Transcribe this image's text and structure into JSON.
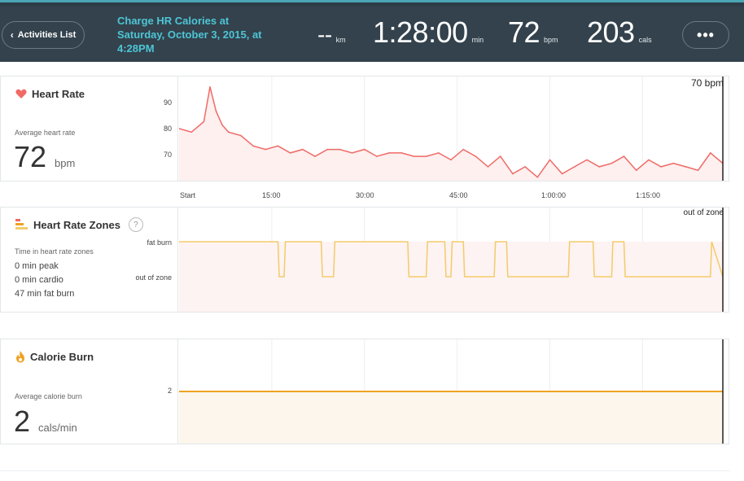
{
  "header": {
    "back_label": "Activities List",
    "title": "Charge HR Calories at Saturday, October 3, 2015, at 4:28PM",
    "distance": {
      "value": "--",
      "unit": "km"
    },
    "duration": {
      "value": "1:28:00",
      "unit": "min"
    },
    "heart_rate": {
      "value": "72",
      "unit": "bpm"
    },
    "calories": {
      "value": "203",
      "unit": "cals"
    },
    "more_label": "•••"
  },
  "heart_rate_panel": {
    "title": "Heart Rate",
    "avg_label": "Average heart rate",
    "avg_value": "72",
    "avg_unit": "bpm",
    "y_ticks": [
      "90",
      "80",
      "70"
    ],
    "cursor_label": "70 bpm",
    "line_color": "#f06a66",
    "fill_color": "#fdf0ef"
  },
  "x_axis": {
    "ticks": [
      "Start",
      "15:00",
      "30:00",
      "45:00",
      "1:00:00",
      "1:15:00"
    ]
  },
  "zones_panel": {
    "title": "Heart Rate Zones",
    "help": "?",
    "time_label": "Time in heart rate zones",
    "peak": "0 min peak",
    "cardio": "0 min cardio",
    "fat_burn": "47 min fat burn",
    "y_labels": [
      "fat burn",
      "out of zone"
    ],
    "cursor_label": "out of zone",
    "line_color": "#f3cb6a"
  },
  "calorie_panel": {
    "title": "Calorie Burn",
    "avg_label": "Average calorie burn",
    "avg_value": "2",
    "avg_unit": "cals/min",
    "y_tick": "2",
    "line_color": "#f0a223",
    "fill_color": "#fdf6ec"
  },
  "chart_data": [
    {
      "type": "line",
      "title": "Heart Rate",
      "ylabel": "bpm",
      "ylim": [
        64,
        94
      ],
      "x_minutes": [
        0,
        2,
        4,
        5,
        6,
        7,
        8,
        10,
        12,
        14,
        16,
        18,
        20,
        22,
        24,
        26,
        28,
        30,
        32,
        34,
        36,
        38,
        40,
        42,
        44,
        46,
        48,
        50,
        52,
        54,
        56,
        58,
        60,
        62,
        64,
        66,
        68,
        70,
        72,
        74,
        76,
        78,
        80,
        82,
        84,
        86,
        88
      ],
      "values": [
        79,
        78,
        81,
        91,
        84,
        80,
        78,
        77,
        74,
        73,
        74,
        72,
        73,
        71,
        73,
        73,
        72,
        73,
        71,
        72,
        72,
        71,
        71,
        72,
        70,
        73,
        71,
        68,
        71,
        66,
        68,
        65,
        70,
        66,
        68,
        70,
        68,
        69,
        71,
        67,
        70,
        68,
        69,
        68,
        67,
        72,
        69
      ]
    },
    {
      "type": "line",
      "title": "Heart Rate Zones",
      "categories": [
        "out of zone",
        "fat burn"
      ],
      "x_minutes": [
        0,
        16,
        16.2,
        17,
        17.2,
        23,
        23.2,
        25,
        25.2,
        37,
        37.2,
        40,
        40.2,
        43,
        43.2,
        44,
        44.2,
        46,
        46.2,
        51,
        51.2,
        53,
        53.2,
        63,
        63.2,
        67,
        67.2,
        70,
        70.2,
        72,
        72.2,
        86,
        86.2,
        88
      ],
      "zone": [
        1,
        1,
        0,
        0,
        1,
        1,
        0,
        0,
        1,
        1,
        0,
        0,
        1,
        1,
        0,
        0,
        1,
        1,
        0,
        0,
        1,
        1,
        0,
        0,
        1,
        1,
        0,
        0,
        1,
        1,
        0,
        0,
        1,
        0
      ]
    },
    {
      "type": "area",
      "title": "Calorie Burn",
      "ylabel": "cals/min",
      "x_minutes": [
        0,
        88
      ],
      "values": [
        2,
        2
      ]
    }
  ]
}
